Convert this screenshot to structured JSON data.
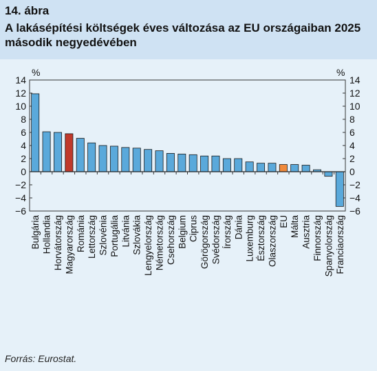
{
  "figure": {
    "label": "14. ábra",
    "title": "A lakásépítési költségek éves változása az EU országaiban 2025 második negyedévében",
    "source": "Forrás: Eurostat."
  },
  "colors": {
    "header_bg": "#cfe2f3",
    "page_bg": "#e6f1f9",
    "bar_default": "#5aa9db",
    "bar_hungary": "#c0392b",
    "bar_eu": "#f08a3c"
  },
  "chart_data": {
    "type": "bar",
    "title": "",
    "xlabel": "",
    "ylabel": "%",
    "ylabel_right": "%",
    "ylim": [
      -6,
      14
    ],
    "yticks": [
      14,
      12,
      10,
      8,
      6,
      4,
      2,
      0,
      -2,
      -4,
      -6
    ],
    "ytick_labels": [
      "14",
      "12",
      "10",
      "8",
      "6",
      "4",
      "2",
      "0",
      "−2",
      "−4",
      "−6"
    ],
    "grid": false,
    "categories": [
      "Bulgária",
      "Hollandia",
      "Horvátország",
      "Magyarország",
      "Románia",
      "Lettország",
      "Szlovénia",
      "Portugália",
      "Litvánia",
      "Szlovákia",
      "Lengyelország",
      "Németország",
      "Csehország",
      "Belgium",
      "Ciprus",
      "Görögország",
      "Svédország",
      "Írország",
      "Dánia",
      "Luxemburg",
      "Észtország",
      "Olaszország",
      "EU",
      "Málta",
      "Ausztria",
      "Finnország",
      "Spanyolország",
      "Franciaország"
    ],
    "values": [
      11.9,
      6.1,
      6.0,
      5.8,
      5.1,
      4.4,
      4.0,
      3.9,
      3.7,
      3.6,
      3.4,
      3.2,
      2.8,
      2.7,
      2.6,
      2.4,
      2.4,
      2.0,
      2.0,
      1.5,
      1.3,
      1.3,
      1.1,
      1.1,
      1.0,
      0.3,
      -0.7,
      -5.3
    ],
    "highlight": {
      "Magyarország": "#c0392b",
      "EU": "#f08a3c"
    }
  }
}
